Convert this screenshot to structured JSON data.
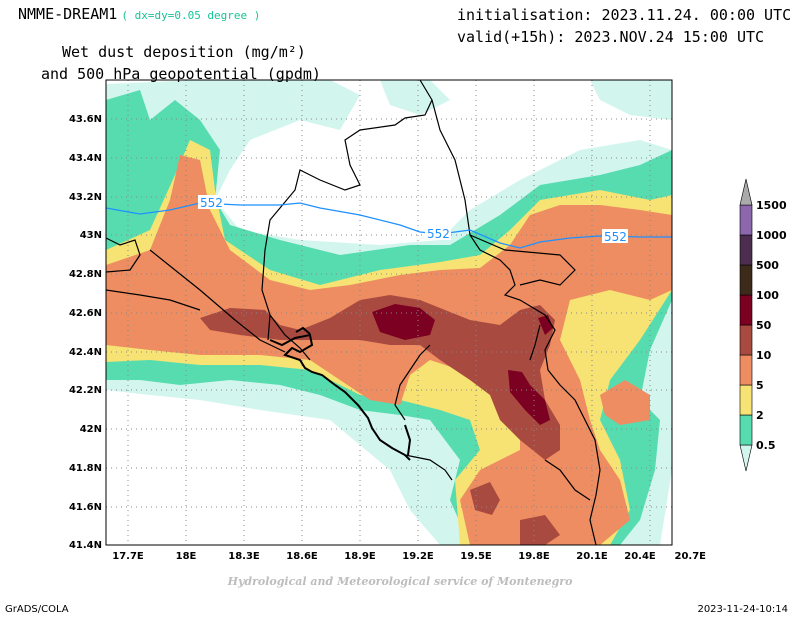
{
  "header": {
    "model": "NMME-DREAM1",
    "resolution": "( dx=dy=0.05 degree )",
    "initialisation": "initialisation: 2023.11.24. 00:00 UTC",
    "valid": "valid(+15h): 2023.NOV.24 15:00 UTC",
    "variable_line1": "Wet dust deposition (mg/m²)",
    "variable_line2": "and 500 hPa geopotential (gpdm)"
  },
  "axes": {
    "lat_labels": [
      "43.6N",
      "43.4N",
      "43.2N",
      "43N",
      "42.8N",
      "42.6N",
      "42.4N",
      "42.2N",
      "42N",
      "41.8N",
      "41.6N",
      "41.4N"
    ],
    "lon_labels": [
      "17.7E",
      "18E",
      "18.3E",
      "18.6E",
      "18.9E",
      "19.2E",
      "19.5E",
      "19.8E",
      "20.1E",
      "20.4E",
      "20.7E"
    ]
  },
  "legend": {
    "levels": [
      "0.5",
      "2",
      "5",
      "10",
      "50",
      "100",
      "500",
      "1000",
      "1500"
    ],
    "colors": [
      "#d2f5ed",
      "#57dcb0",
      "#f6e373",
      "#ee8d62",
      "#a84a3f",
      "#7b0022",
      "#3c2a1b",
      "#4c2d4f",
      "#8d67ac",
      "#aaaaaa"
    ]
  },
  "contour": {
    "value_label": "552",
    "color": "#1e90ff"
  },
  "footer": {
    "credit": "Hydrological and Meteorological service of Montenegro",
    "software": "GrADS/COLA",
    "timestamp": "2023-11-24-10:14"
  }
}
